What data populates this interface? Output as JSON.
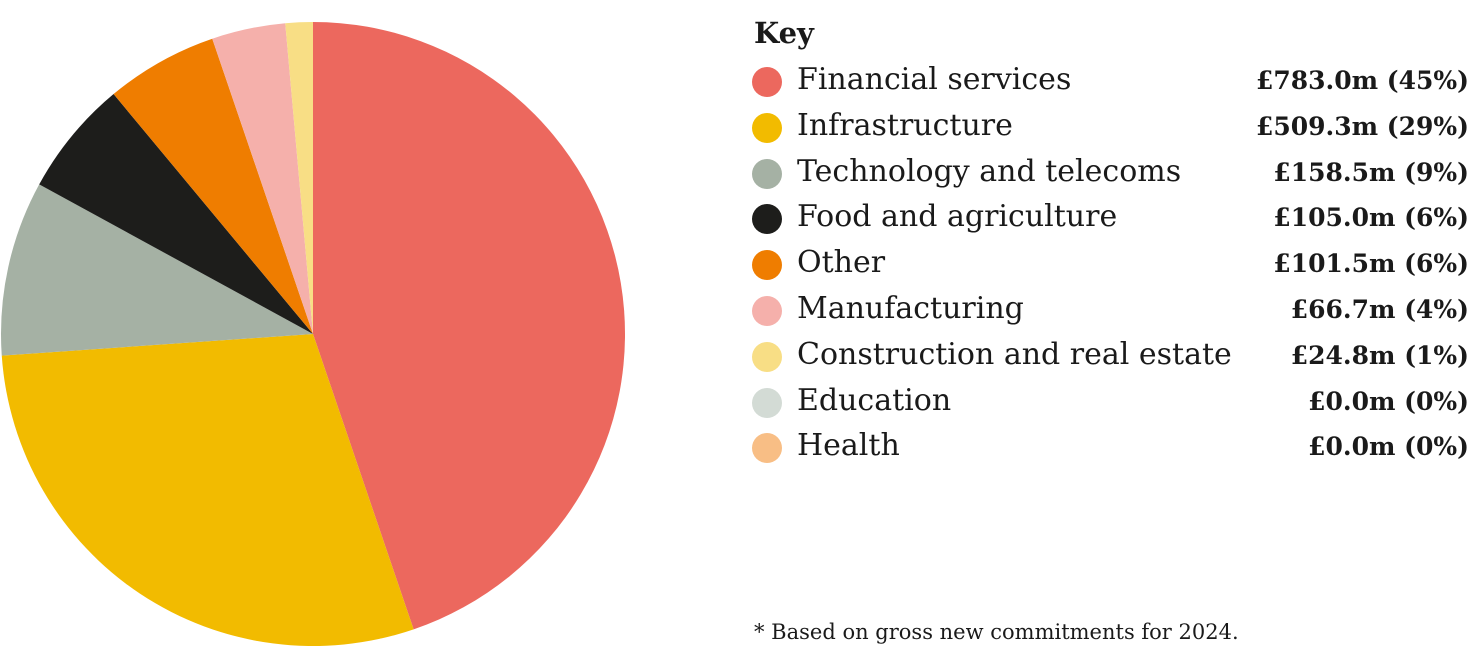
{
  "chart_data": {
    "type": "pie",
    "legend_title": "Key",
    "legend_placement": "right",
    "slices": [
      {
        "label": "Financial services",
        "value": 783.0,
        "display": "£783.0m (45%)",
        "color": "#ec685e"
      },
      {
        "label": "Infrastructure",
        "value": 509.3,
        "display": "£509.3m (29%)",
        "color": "#f2bb00"
      },
      {
        "label": "Technology and telecoms",
        "value": 158.5,
        "display": "£158.5m (9%)",
        "color": "#a5b1a4"
      },
      {
        "label": "Food and agriculture",
        "value": 105.0,
        "display": "£105.0m (6%)",
        "color": "#1d1d1b"
      },
      {
        "label": "Other",
        "value": 101.5,
        "display": "£101.5m (6%)",
        "color": "#ef7d00"
      },
      {
        "label": "Manufacturing",
        "value": 66.7,
        "display": "£66.7m (4%)",
        "color": "#f5b0ab"
      },
      {
        "label": "Construction and real estate",
        "value": 24.8,
        "display": "£24.8m (1%)",
        "color": "#f8de85"
      },
      {
        "label": "Education",
        "value": 0.0,
        "display": "£0.0m (0%)",
        "color": "#d3dbd5"
      },
      {
        "label": "Health",
        "value": 0.0,
        "display": "£0.0m (0%)",
        "color": "#f8be85"
      }
    ]
  },
  "footnote": "*  Based on gross new commitments for 2024."
}
